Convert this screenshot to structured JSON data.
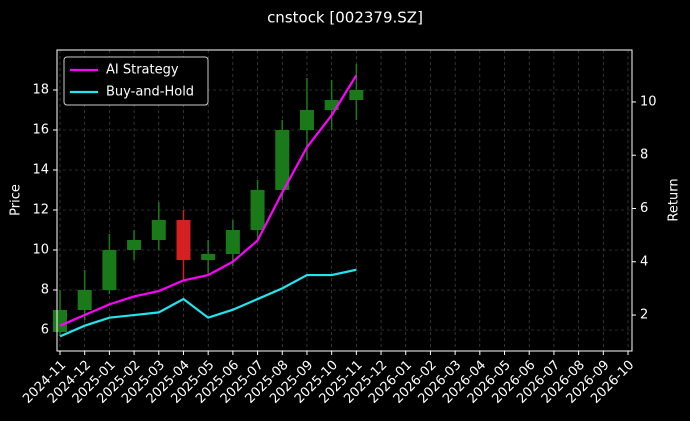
{
  "chart_data": {
    "type": "candlestick",
    "title": "cnstock [002379.SZ]",
    "y_label": "Price",
    "y2_label": "Return",
    "x": [
      "2024-11",
      "2024-12",
      "2025-01",
      "2025-02",
      "2025-03",
      "2025-04",
      "2025-05",
      "2025-06",
      "2025-07",
      "2025-08",
      "2025-09",
      "2025-10",
      "2025-11"
    ],
    "open": [
      5.9,
      7.0,
      8.0,
      10.0,
      10.5,
      11.5,
      9.5,
      9.8,
      11.0,
      13.0,
      16.0,
      17.0,
      17.5
    ],
    "high": [
      8.0,
      9.0,
      10.8,
      11.0,
      12.4,
      12.0,
      10.5,
      11.5,
      13.5,
      16.5,
      18.6,
      18.5,
      19.3
    ],
    "low": [
      5.7,
      6.5,
      7.8,
      9.5,
      10.0,
      8.5,
      8.8,
      9.2,
      10.5,
      12.5,
      14.5,
      16.0,
      16.5
    ],
    "close": [
      7.0,
      8.0,
      10.0,
      10.5,
      11.5,
      9.5,
      9.8,
      11.0,
      13.0,
      16.0,
      17.0,
      17.5,
      18.0
    ],
    "up_color": "#1a7a1a",
    "down_color": "#d42020",
    "series": [
      {
        "name": "AI Strategy",
        "color": "#ff00ff",
        "axis": "y2",
        "values": [
          1.6,
          2.0,
          2.4,
          2.7,
          2.9,
          3.3,
          3.5,
          4.0,
          4.8,
          6.6,
          8.3,
          9.5,
          11.0
        ]
      },
      {
        "name": "Buy-and-Hold",
        "color": "#22e5ee",
        "axis": "y2",
        "values": [
          1.2,
          1.6,
          1.9,
          2.0,
          2.1,
          2.6,
          1.9,
          2.2,
          2.6,
          3.0,
          3.5,
          3.5,
          3.7
        ]
      }
    ],
    "xlim": [
      "2024-11",
      "2026-10"
    ],
    "xticks": [
      "2024-11",
      "2024-12",
      "2025-01",
      "2025-02",
      "2025-03",
      "2025-04",
      "2025-05",
      "2025-06",
      "2025-07",
      "2025-08",
      "2025-09",
      "2025-10",
      "2025-11",
      "2025-12",
      "2026-01",
      "2026-02",
      "2026-03",
      "2026-04",
      "2026-05",
      "2026-06",
      "2026-07",
      "2026-08",
      "2026-09",
      "2026-10"
    ],
    "ylim": [
      4.95,
      20.0
    ],
    "yticks": [
      6,
      8,
      10,
      12,
      14,
      16,
      18
    ],
    "y2lim": [
      0.65,
      11.95
    ],
    "y2ticks": [
      2,
      4,
      6,
      8,
      10
    ],
    "grid": true,
    "legend": "upper left"
  }
}
